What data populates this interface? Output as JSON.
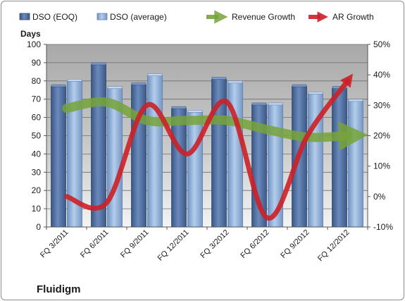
{
  "chart_data": {
    "type": "bar",
    "company_label": "Fluidigm",
    "ylabel_left": "Days",
    "categories": [
      "FQ 3/2011",
      "FQ 6/2011",
      "FQ 9/2011",
      "FQ 12/2011",
      "FQ 3/2012",
      "FQ 6/2012",
      "FQ 9/2012",
      "FQ 12/2012"
    ],
    "ylim_left": [
      0,
      100
    ],
    "yticks_left": [
      "0",
      "10",
      "20",
      "30",
      "40",
      "50",
      "60",
      "70",
      "80",
      "90",
      "100"
    ],
    "ylim_right": [
      -10,
      50
    ],
    "yticks_right": [
      "-10%",
      "0%",
      "10%",
      "20%",
      "30%",
      "40%",
      "50%"
    ],
    "grid": true,
    "legend_position": "top",
    "series": [
      {
        "name": "DSO (EOQ)",
        "kind": "bar",
        "color": "#4a6a9c",
        "values": [
          77,
          89,
          78,
          65,
          81,
          67,
          77,
          76
        ]
      },
      {
        "name": "DSO (average)",
        "kind": "bar",
        "color": "#8fb0da",
        "values": [
          80,
          76,
          83,
          63,
          79,
          67,
          73,
          69
        ]
      },
      {
        "name": "Revenue Growth",
        "kind": "line-arrow",
        "color": "#77a33a",
        "axis": "right",
        "unit": "%",
        "values": [
          29,
          31,
          25,
          25,
          25,
          22,
          19.5,
          20
        ]
      },
      {
        "name": "AR Growth",
        "kind": "line-arrow",
        "color": "#cc2027",
        "axis": "right",
        "unit": "%",
        "values": [
          0,
          -2,
          30,
          14,
          31,
          -7,
          20,
          38
        ]
      }
    ]
  }
}
